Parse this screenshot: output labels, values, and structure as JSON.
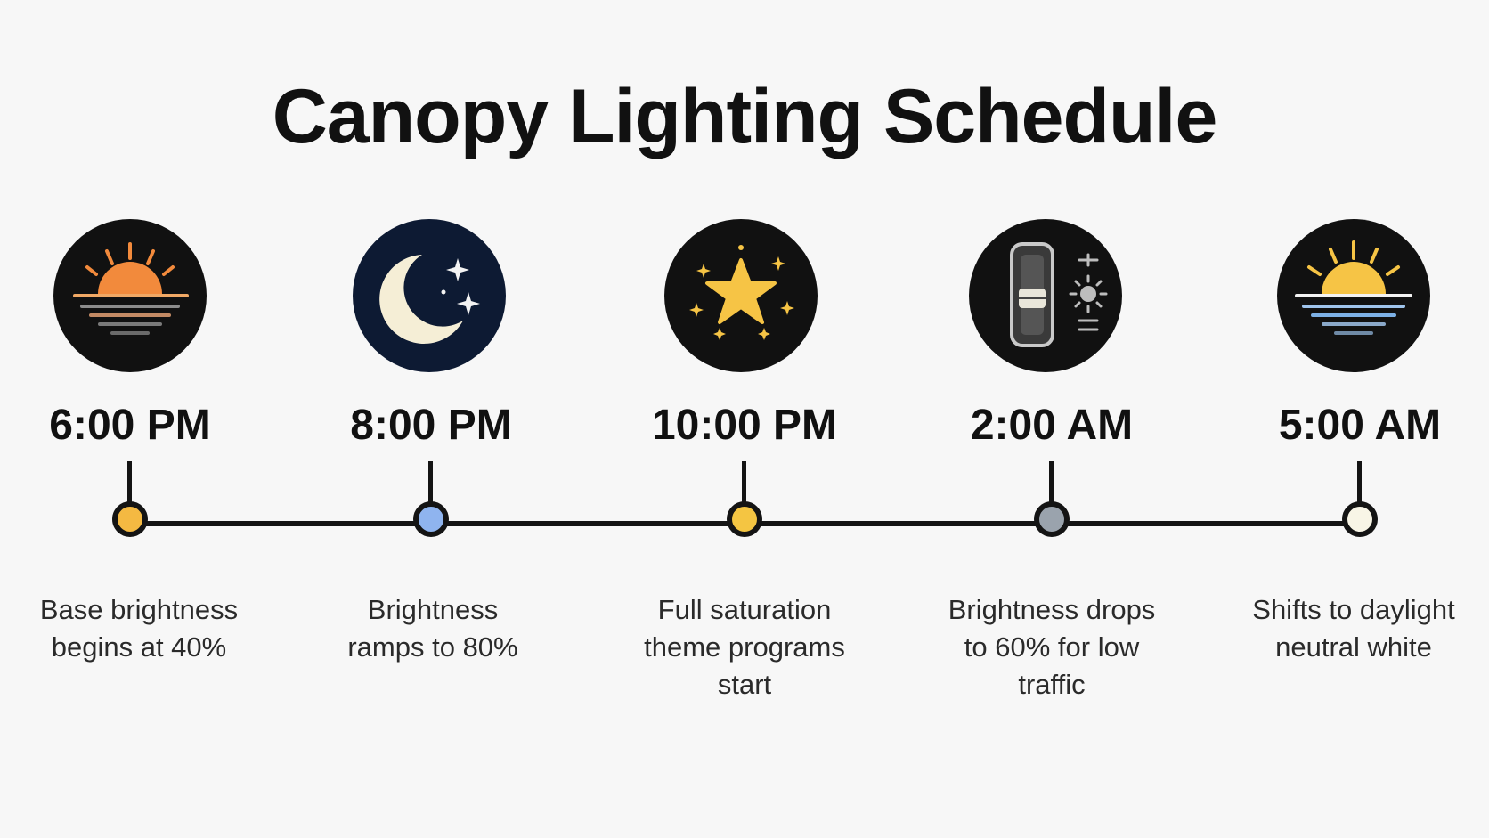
{
  "title": "Canopy Lighting Schedule",
  "events": [
    {
      "time": "6:00 PM",
      "description_line1": "Base brightness",
      "description_line2": "begins at 40%",
      "description_line3": "",
      "icon": "sunset-icon",
      "dot_color": "#f4b942"
    },
    {
      "time": "8:00 PM",
      "description_line1": "Brightness",
      "description_line2": "ramps to 80%",
      "description_line3": "",
      "icon": "moon-icon",
      "dot_color": "#8fb4ef"
    },
    {
      "time": "10:00 PM",
      "description_line1": "Full saturation",
      "description_line2": "theme programs",
      "description_line3": "start",
      "icon": "star-icon",
      "dot_color": "#f4c542"
    },
    {
      "time": "2:00 AM",
      "description_line1": "Brightness drops",
      "description_line2": "to 60% for low",
      "description_line3": "traffic",
      "icon": "dimmer-switch-icon",
      "dot_color": "#9aa3ad"
    },
    {
      "time": "5:00 AM",
      "description_line1": "Shifts to daylight",
      "description_line2": "neutral white",
      "description_line3": "",
      "icon": "sunrise-icon",
      "dot_color": "#f8f5e6"
    }
  ]
}
